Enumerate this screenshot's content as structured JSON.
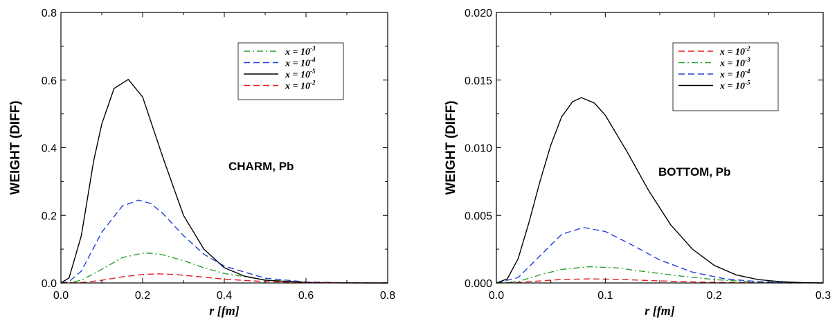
{
  "chart_data": [
    {
      "type": "line",
      "xlabel": "r [fm]",
      "ylabel": "WEIGHT (DIFF)",
      "annotation": "CHARM, Pb",
      "xlim": [
        0,
        0.8
      ],
      "ylim": [
        0,
        0.8
      ],
      "xticks": [
        "0.0",
        "0.2",
        "0.4",
        "0.6",
        "0.8"
      ],
      "yticks": [
        "0.0",
        "0.2",
        "0.4",
        "0.6",
        "0.8"
      ],
      "legend_position": "top-right",
      "series": [
        {
          "name": "x = 10^-3",
          "base": "x = 10",
          "exp": "-3",
          "color": "#2ca02c",
          "dash": "dashdot",
          "x": [
            0,
            0.02,
            0.05,
            0.1,
            0.15,
            0.2,
            0.22,
            0.25,
            0.3,
            0.35,
            0.4,
            0.5,
            0.6,
            0.7,
            0.8
          ],
          "y": [
            0,
            0.001,
            0.008,
            0.04,
            0.075,
            0.088,
            0.088,
            0.083,
            0.066,
            0.045,
            0.028,
            0.009,
            0.002,
            0.0003,
            0
          ]
        },
        {
          "name": "x = 10^-4",
          "base": "x = 10",
          "exp": "-4",
          "color": "#1f3fd9",
          "dash": "dash",
          "x": [
            0,
            0.02,
            0.05,
            0.1,
            0.15,
            0.19,
            0.22,
            0.25,
            0.3,
            0.35,
            0.4,
            0.5,
            0.6,
            0.7,
            0.8
          ],
          "y": [
            0,
            0.004,
            0.035,
            0.15,
            0.227,
            0.245,
            0.235,
            0.205,
            0.14,
            0.085,
            0.05,
            0.014,
            0.003,
            0.0005,
            0
          ]
        },
        {
          "name": "x = 10^-5",
          "base": "x = 10",
          "exp": "-5",
          "color": "#000000",
          "dash": "solid",
          "x": [
            0,
            0.02,
            0.05,
            0.08,
            0.1,
            0.13,
            0.165,
            0.2,
            0.25,
            0.3,
            0.35,
            0.4,
            0.45,
            0.5,
            0.6,
            0.7,
            0.8
          ],
          "y": [
            0,
            0.015,
            0.14,
            0.36,
            0.47,
            0.575,
            0.602,
            0.55,
            0.37,
            0.2,
            0.1,
            0.045,
            0.02,
            0.008,
            0.0015,
            0.0002,
            0
          ]
        },
        {
          "name": "x = 10^-2",
          "base": "x = 10",
          "exp": "-2",
          "color": "#e31a1c",
          "dash": "dash",
          "x": [
            0,
            0.05,
            0.1,
            0.15,
            0.2,
            0.235,
            0.28,
            0.35,
            0.4,
            0.5,
            0.6,
            0.7,
            0.8
          ],
          "y": [
            0,
            0.001,
            0.008,
            0.018,
            0.025,
            0.027,
            0.025,
            0.017,
            0.011,
            0.004,
            0.001,
            0.0002,
            0
          ]
        }
      ]
    },
    {
      "type": "line",
      "xlabel": "r [fm]",
      "ylabel": "WEIGHT (DIFF)",
      "annotation": "BOTTOM, Pb",
      "xlim": [
        0,
        0.3
      ],
      "ylim": [
        0,
        0.02
      ],
      "xticks": [
        "0.0",
        "0.1",
        "0.2",
        "0.3"
      ],
      "yticks": [
        "0.000",
        "0.005",
        "0.010",
        "0.015",
        "0.020"
      ],
      "legend_position": "top-right",
      "series": [
        {
          "name": "x = 10^-2",
          "base": "x = 10",
          "exp": "-2",
          "color": "#e31a1c",
          "dash": "dash",
          "x": [
            0,
            0.02,
            0.04,
            0.06,
            0.085,
            0.11,
            0.14,
            0.17,
            0.2,
            0.25,
            0.3
          ],
          "y": [
            0,
            3e-05,
            0.00015,
            0.00026,
            0.0003,
            0.00027,
            0.00018,
            0.0001,
            4e-05,
            1e-05,
            0
          ]
        },
        {
          "name": "x = 10^-3",
          "base": "x = 10",
          "exp": "-3",
          "color": "#2ca02c",
          "dash": "dashdot",
          "x": [
            0,
            0.02,
            0.04,
            0.06,
            0.085,
            0.11,
            0.14,
            0.17,
            0.2,
            0.23,
            0.26,
            0.3
          ],
          "y": [
            0,
            0.0001,
            0.0006,
            0.001,
            0.0012,
            0.00112,
            0.0008,
            0.0005,
            0.00025,
            0.0001,
            3e-05,
            0
          ]
        },
        {
          "name": "x = 10^-4",
          "base": "x = 10",
          "exp": "-4",
          "color": "#1f3fd9",
          "dash": "dash",
          "x": [
            0,
            0.02,
            0.04,
            0.06,
            0.08,
            0.1,
            0.12,
            0.15,
            0.18,
            0.21,
            0.24,
            0.27,
            0.3
          ],
          "y": [
            0,
            0.0004,
            0.002,
            0.0036,
            0.0041,
            0.0038,
            0.003,
            0.0017,
            0.0008,
            0.0003,
            0.0001,
            2e-05,
            0
          ]
        },
        {
          "name": "x = 10^-5",
          "base": "x = 10",
          "exp": "-5",
          "color": "#000000",
          "dash": "solid",
          "x": [
            0,
            0.01,
            0.02,
            0.03,
            0.04,
            0.05,
            0.06,
            0.07,
            0.078,
            0.09,
            0.1,
            0.12,
            0.14,
            0.16,
            0.18,
            0.2,
            0.22,
            0.24,
            0.26,
            0.28,
            0.3
          ],
          "y": [
            0,
            0.0003,
            0.0018,
            0.0045,
            0.0075,
            0.0102,
            0.0123,
            0.0134,
            0.0137,
            0.0133,
            0.0124,
            0.0097,
            0.0068,
            0.0043,
            0.0025,
            0.0013,
            0.0006,
            0.00025,
            0.0001,
            3e-05,
            0
          ]
        }
      ]
    }
  ]
}
